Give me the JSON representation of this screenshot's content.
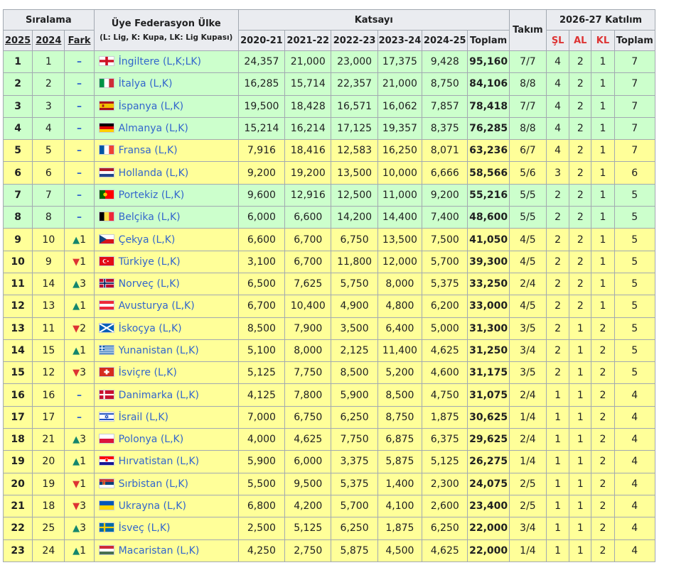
{
  "header": {
    "siralama": "Sıralama",
    "federation_title": "Üye Federasyon Ülke",
    "federation_sub": "(L: Lig, K: Kupa, LK: Lig Kupası)",
    "katsayi": "Katsayı",
    "takim": "Takım",
    "katilim": "2026-27 Katılım",
    "y2025": "2025",
    "y2024": "2024",
    "fark": "Fark",
    "seasons": [
      "2020-21",
      "2021-22",
      "2022-23",
      "2023-24",
      "2024-25"
    ],
    "toplam": "Toplam",
    "sl": "ŞL",
    "al": "AL",
    "kl": "KL",
    "toplam2": "Toplam"
  },
  "rows": [
    {
      "r2025": "1",
      "r2024": "1",
      "chg": "neutral",
      "chgVal": "",
      "flag": "england",
      "country": "İngiltere (L,K;LK)",
      "c": [
        "24,357",
        "21,000",
        "23,000",
        "17,375",
        "9,428"
      ],
      "total": "95,160",
      "takim": "7/7",
      "sl": "4",
      "al": "2",
      "kl": "1",
      "t": "7",
      "color": "green"
    },
    {
      "r2025": "2",
      "r2024": "2",
      "chg": "neutral",
      "chgVal": "",
      "flag": "italy",
      "country": "İtalya (L,K)",
      "c": [
        "16,285",
        "15,714",
        "22,357",
        "21,000",
        "8,750"
      ],
      "total": "84,106",
      "takim": "8/8",
      "sl": "4",
      "al": "2",
      "kl": "1",
      "t": "7",
      "color": "green"
    },
    {
      "r2025": "3",
      "r2024": "3",
      "chg": "neutral",
      "chgVal": "",
      "flag": "spain",
      "country": "İspanya (L,K)",
      "c": [
        "19,500",
        "18,428",
        "16,571",
        "16,062",
        "7,857"
      ],
      "total": "78,418",
      "takim": "7/7",
      "sl": "4",
      "al": "2",
      "kl": "1",
      "t": "7",
      "color": "green"
    },
    {
      "r2025": "4",
      "r2024": "4",
      "chg": "neutral",
      "chgVal": "",
      "flag": "germany",
      "country": "Almanya (L,K)",
      "c": [
        "15,214",
        "16,214",
        "17,125",
        "19,357",
        "8,375"
      ],
      "total": "76,285",
      "takim": "8/8",
      "sl": "4",
      "al": "2",
      "kl": "1",
      "t": "7",
      "color": "green"
    },
    {
      "r2025": "5",
      "r2024": "5",
      "chg": "neutral",
      "chgVal": "",
      "flag": "france",
      "country": "Fransa (L,K)",
      "c": [
        "7,916",
        "18,416",
        "12,583",
        "16,250",
        "8,071"
      ],
      "total": "63,236",
      "takim": "6/7",
      "sl": "4",
      "al": "2",
      "kl": "1",
      "t": "7",
      "color": "yellow"
    },
    {
      "r2025": "6",
      "r2024": "6",
      "chg": "neutral",
      "chgVal": "",
      "flag": "netherlands",
      "country": "Hollanda (L,K)",
      "c": [
        "9,200",
        "19,200",
        "13,500",
        "10,000",
        "6,666"
      ],
      "total": "58,566",
      "takim": "5/6",
      "sl": "3",
      "al": "2",
      "kl": "1",
      "t": "6",
      "color": "yellow"
    },
    {
      "r2025": "7",
      "r2024": "7",
      "chg": "neutral",
      "chgVal": "",
      "flag": "portugal",
      "country": "Portekiz (L,K)",
      "c": [
        "9,600",
        "12,916",
        "12,500",
        "11,000",
        "9,200"
      ],
      "total": "55,216",
      "takim": "5/5",
      "sl": "2",
      "al": "2",
      "kl": "1",
      "t": "5",
      "color": "green"
    },
    {
      "r2025": "8",
      "r2024": "8",
      "chg": "neutral",
      "chgVal": "",
      "flag": "belgium",
      "country": "Belçika (L,K)",
      "c": [
        "6,000",
        "6,600",
        "14,200",
        "14,400",
        "7,400"
      ],
      "total": "48,600",
      "takim": "5/5",
      "sl": "2",
      "al": "2",
      "kl": "1",
      "t": "5",
      "color": "green"
    },
    {
      "r2025": "9",
      "r2024": "10",
      "chg": "up",
      "chgVal": "1",
      "flag": "czech",
      "country": "Çekya (L,K)",
      "c": [
        "6,600",
        "6,700",
        "6,750",
        "13,500",
        "7,500"
      ],
      "total": "41,050",
      "takim": "4/5",
      "sl": "2",
      "al": "2",
      "kl": "1",
      "t": "5",
      "color": "yellow"
    },
    {
      "r2025": "10",
      "r2024": "9",
      "chg": "down",
      "chgVal": "1",
      "flag": "turkey",
      "country": "Türkiye (L,K)",
      "c": [
        "3,100",
        "6,700",
        "11,800",
        "12,000",
        "5,700"
      ],
      "total": "39,300",
      "takim": "4/5",
      "sl": "2",
      "al": "2",
      "kl": "1",
      "t": "5",
      "color": "yellow"
    },
    {
      "r2025": "11",
      "r2024": "14",
      "chg": "up",
      "chgVal": "3",
      "flag": "norway",
      "country": "Norveç (L,K)",
      "c": [
        "6,500",
        "7,625",
        "5,750",
        "8,000",
        "5,375"
      ],
      "total": "33,250",
      "takim": "2/4",
      "sl": "2",
      "al": "2",
      "kl": "1",
      "t": "5",
      "color": "yellow"
    },
    {
      "r2025": "12",
      "r2024": "13",
      "chg": "up",
      "chgVal": "1",
      "flag": "austria",
      "country": "Avusturya (L,K)",
      "c": [
        "6,700",
        "10,400",
        "4,900",
        "4,800",
        "6,200"
      ],
      "total": "33,000",
      "takim": "4/5",
      "sl": "2",
      "al": "2",
      "kl": "1",
      "t": "5",
      "color": "yellow"
    },
    {
      "r2025": "13",
      "r2024": "11",
      "chg": "down",
      "chgVal": "2",
      "flag": "scotland",
      "country": "İskoçya (L,K)",
      "c": [
        "8,500",
        "7,900",
        "3,500",
        "6,400",
        "5,000"
      ],
      "total": "31,300",
      "takim": "3/5",
      "sl": "2",
      "al": "1",
      "kl": "2",
      "t": "5",
      "color": "yellow"
    },
    {
      "r2025": "14",
      "r2024": "15",
      "chg": "up",
      "chgVal": "1",
      "flag": "greece",
      "country": "Yunanistan (L,K)",
      "c": [
        "5,100",
        "8,000",
        "2,125",
        "11,400",
        "4,625"
      ],
      "total": "31,250",
      "takim": "3/4",
      "sl": "2",
      "al": "1",
      "kl": "2",
      "t": "5",
      "color": "yellow"
    },
    {
      "r2025": "15",
      "r2024": "12",
      "chg": "down",
      "chgVal": "3",
      "flag": "switzerland",
      "country": "İsviçre (L,K)",
      "c": [
        "5,125",
        "7,750",
        "8,500",
        "5,200",
        "4,600"
      ],
      "total": "31,175",
      "takim": "3/5",
      "sl": "2",
      "al": "1",
      "kl": "2",
      "t": "5",
      "color": "yellow"
    },
    {
      "r2025": "16",
      "r2024": "16",
      "chg": "neutral",
      "chgVal": "",
      "flag": "denmark",
      "country": "Danimarka (L,K)",
      "c": [
        "4,125",
        "7,800",
        "5,900",
        "8,500",
        "4,750"
      ],
      "total": "31,075",
      "takim": "2/4",
      "sl": "1",
      "al": "1",
      "kl": "2",
      "t": "4",
      "color": "yellow"
    },
    {
      "r2025": "17",
      "r2024": "17",
      "chg": "neutral",
      "chgVal": "",
      "flag": "israel",
      "country": "İsrail (L,K)",
      "c": [
        "7,000",
        "6,750",
        "6,250",
        "8,750",
        "1,875"
      ],
      "total": "30,625",
      "takim": "1/4",
      "sl": "1",
      "al": "1",
      "kl": "2",
      "t": "4",
      "color": "yellow"
    },
    {
      "r2025": "18",
      "r2024": "21",
      "chg": "up",
      "chgVal": "3",
      "flag": "poland",
      "country": "Polonya (L,K)",
      "c": [
        "4,000",
        "4,625",
        "7,750",
        "6,875",
        "6,375"
      ],
      "total": "29,625",
      "takim": "2/4",
      "sl": "1",
      "al": "1",
      "kl": "2",
      "t": "4",
      "color": "yellow"
    },
    {
      "r2025": "19",
      "r2024": "20",
      "chg": "up",
      "chgVal": "1",
      "flag": "croatia",
      "country": "Hırvatistan (L,K)",
      "c": [
        "5,900",
        "6,000",
        "3,375",
        "5,875",
        "5,125"
      ],
      "total": "26,275",
      "takim": "1/4",
      "sl": "1",
      "al": "1",
      "kl": "2",
      "t": "4",
      "color": "yellow"
    },
    {
      "r2025": "20",
      "r2024": "19",
      "chg": "down",
      "chgVal": "1",
      "flag": "serbia",
      "country": "Sırbistan (L,K)",
      "c": [
        "5,500",
        "9,500",
        "5,375",
        "1,400",
        "2,300"
      ],
      "total": "24,075",
      "takim": "2/5",
      "sl": "1",
      "al": "1",
      "kl": "2",
      "t": "4",
      "color": "yellow"
    },
    {
      "r2025": "21",
      "r2024": "18",
      "chg": "down",
      "chgVal": "3",
      "flag": "ukraine",
      "country": "Ukrayna (L,K)",
      "c": [
        "6,800",
        "4,200",
        "5,700",
        "4,100",
        "2,600"
      ],
      "total": "23,400",
      "takim": "2/5",
      "sl": "1",
      "al": "1",
      "kl": "2",
      "t": "4",
      "color": "yellow"
    },
    {
      "r2025": "22",
      "r2024": "25",
      "chg": "up",
      "chgVal": "3",
      "flag": "sweden",
      "country": "İsveç (L,K)",
      "c": [
        "2,500",
        "5,125",
        "6,250",
        "1,875",
        "6,250"
      ],
      "total": "22,000",
      "takim": "3/4",
      "sl": "1",
      "al": "1",
      "kl": "2",
      "t": "4",
      "color": "yellow"
    },
    {
      "r2025": "23",
      "r2024": "24",
      "chg": "up",
      "chgVal": "1",
      "flag": "hungary",
      "country": "Macaristan (L,K)",
      "c": [
        "4,250",
        "2,750",
        "5,875",
        "4,500",
        "4,625"
      ],
      "total": "22,000",
      "takim": "1/4",
      "sl": "1",
      "al": "1",
      "kl": "2",
      "t": "4",
      "color": "yellow"
    }
  ],
  "colors": {
    "green": "#ccffcc",
    "yellow": "#ffff99",
    "header": "#eaecf0",
    "link": "#3366cc",
    "up": "#14866d",
    "down": "#d33333"
  }
}
